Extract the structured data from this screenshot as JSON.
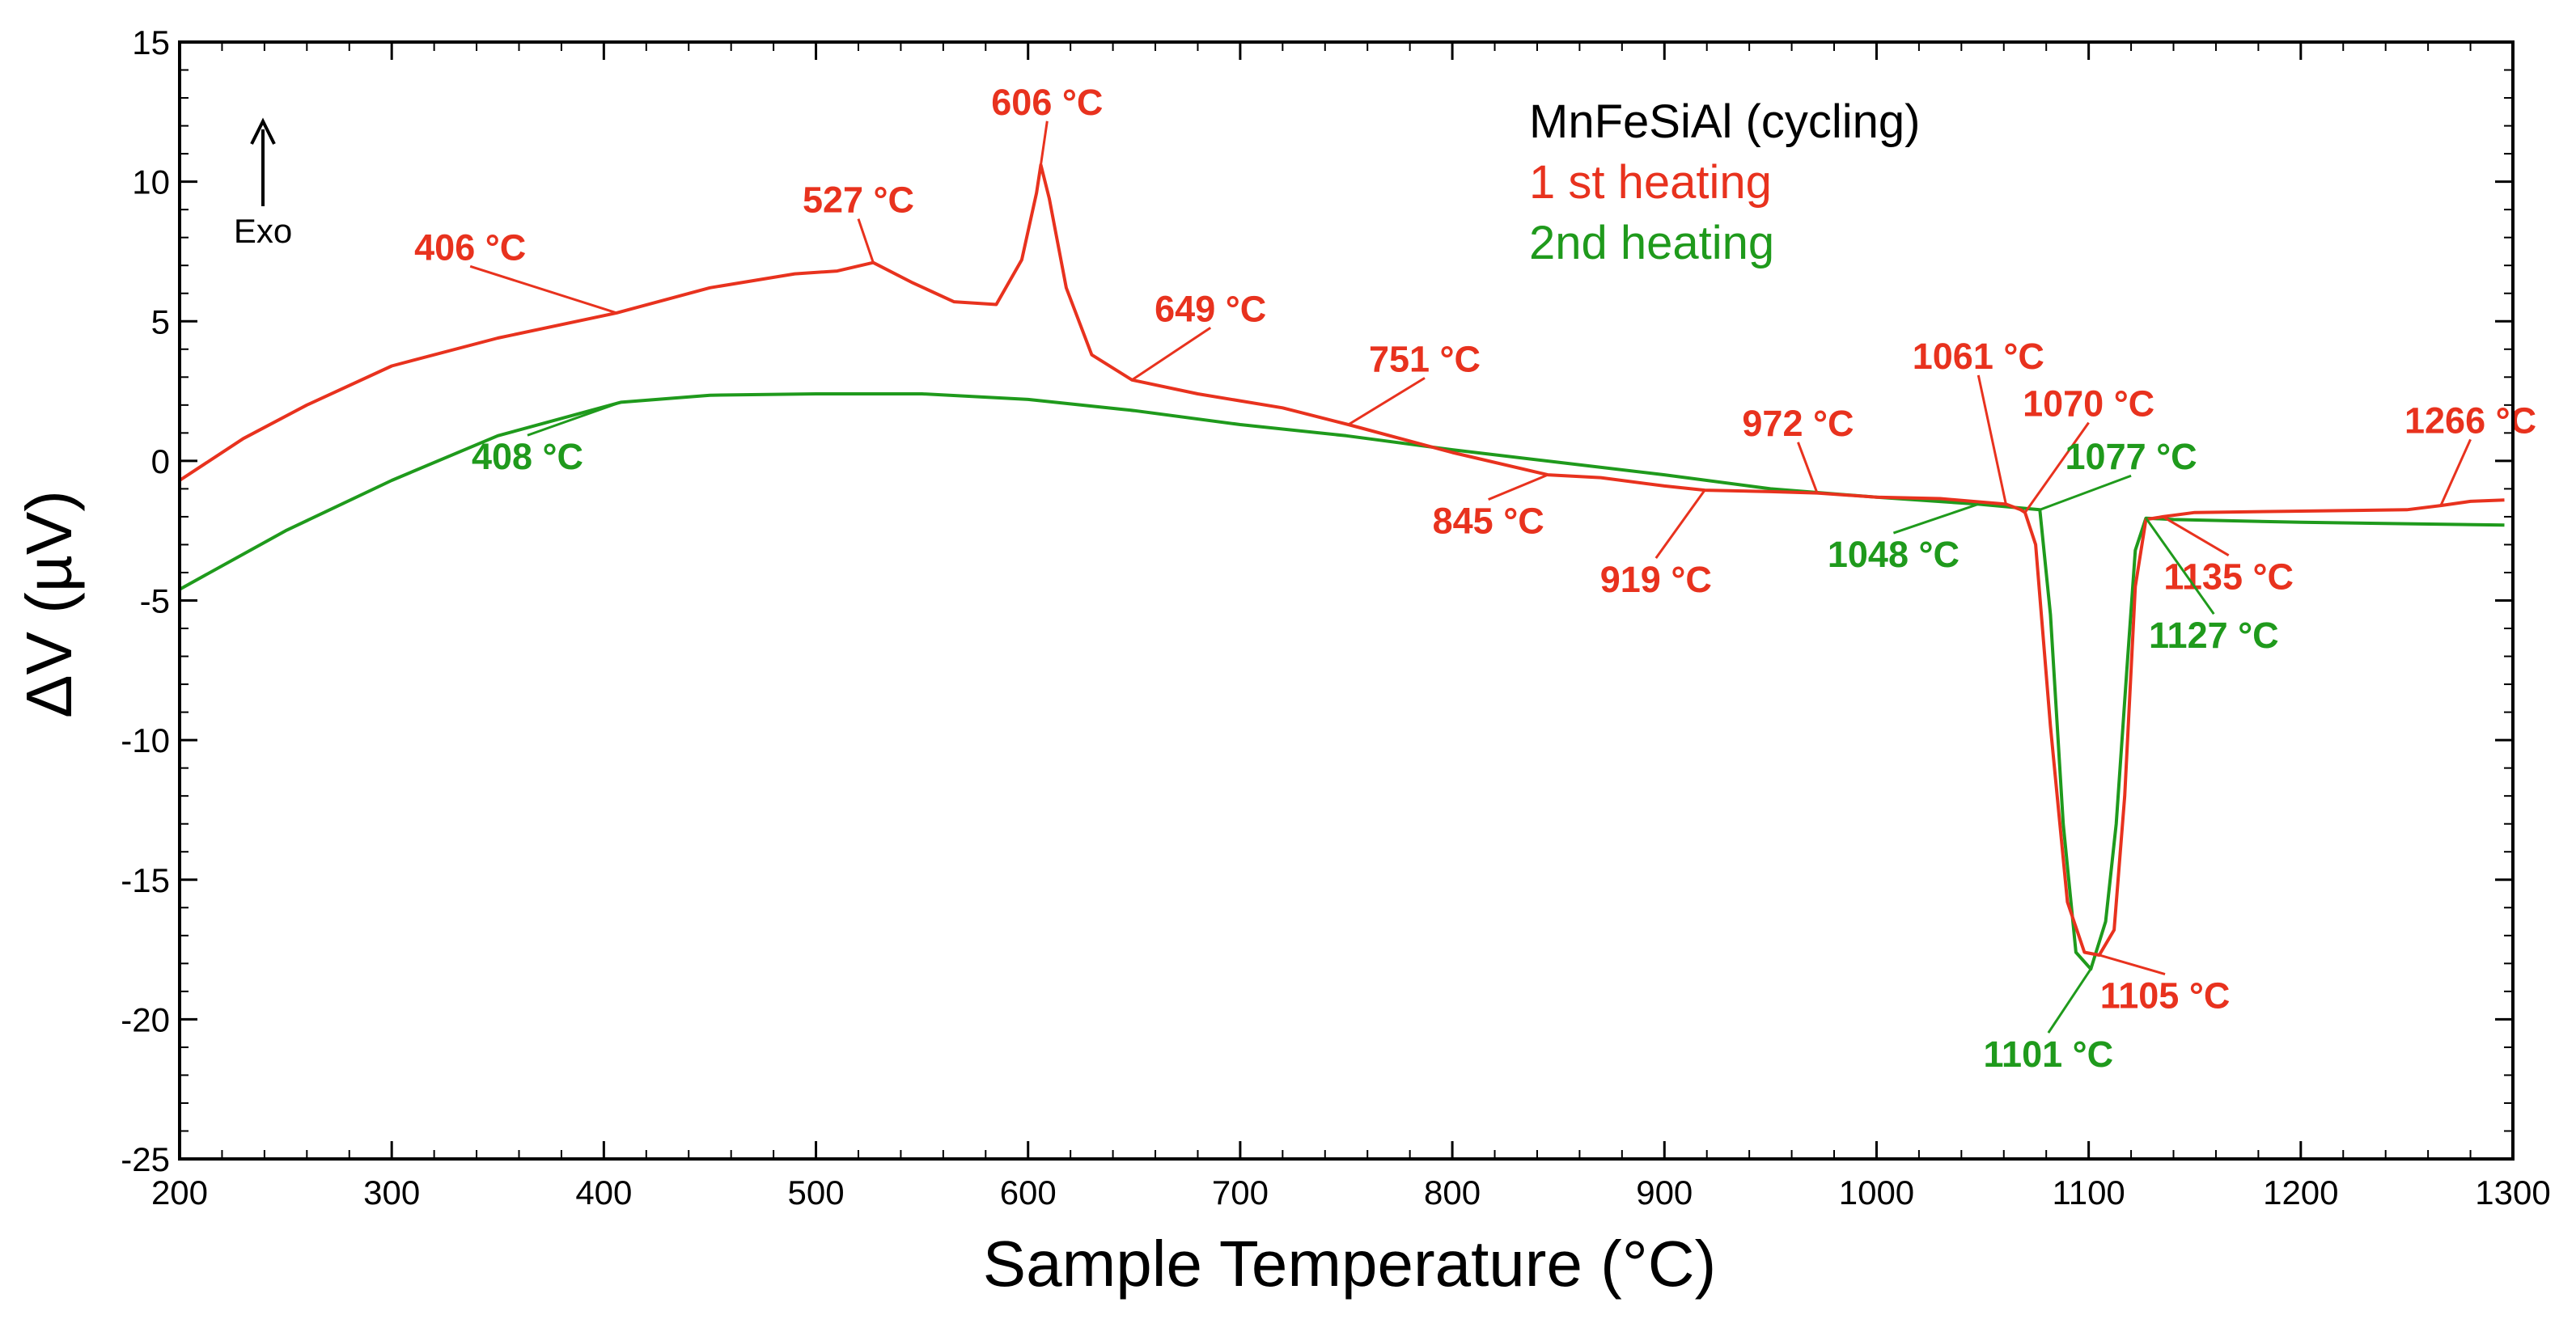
{
  "chart_data": {
    "type": "line",
    "title": "",
    "xlabel": "Sample Temperature (°C)",
    "ylabel": "ΔV (µV)",
    "xlim": [
      200,
      1300
    ],
    "ylim": [
      -25,
      15
    ],
    "xticks": [
      200,
      300,
      400,
      500,
      600,
      700,
      800,
      900,
      1000,
      1100,
      1200,
      1300
    ],
    "yticks": [
      15,
      10,
      5,
      0,
      -5,
      -10,
      -15,
      -20,
      -25
    ],
    "grid": false,
    "exo_label": "Exo",
    "legend": {
      "placement": "top-right",
      "title": "MnFeSiAl (cycling)",
      "title_color": "#000000",
      "entries": [
        {
          "label": "1 st heating",
          "color": "#e8321e"
        },
        {
          "label": "2nd heating",
          "color": "#1f9a1c"
        }
      ]
    },
    "series": [
      {
        "name": "1 st heating",
        "color": "#e8321e",
        "x": [
          200,
          230,
          260,
          300,
          350,
          406,
          450,
          490,
          510,
          527,
          545,
          565,
          585,
          597,
          604,
          606,
          610,
          618,
          630,
          649,
          680,
          720,
          751,
          800,
          845,
          870,
          900,
          919,
          950,
          972,
          1000,
          1030,
          1061,
          1068,
          1070,
          1075,
          1082,
          1090,
          1098,
          1105,
          1112,
          1117,
          1122,
          1127,
          1135,
          1150,
          1200,
          1250,
          1266,
          1280,
          1296
        ],
        "values": [
          -0.7,
          0.8,
          2.0,
          3.4,
          4.4,
          5.3,
          6.2,
          6.7,
          6.8,
          7.1,
          6.4,
          5.7,
          5.6,
          7.2,
          9.6,
          10.6,
          9.4,
          6.2,
          3.8,
          2.9,
          2.4,
          1.9,
          1.3,
          0.3,
          -0.5,
          -0.6,
          -0.9,
          -1.05,
          -1.1,
          -1.15,
          -1.3,
          -1.35,
          -1.55,
          -1.75,
          -1.85,
          -3.0,
          -9.5,
          -15.8,
          -17.6,
          -17.7,
          -16.8,
          -12.0,
          -4.5,
          -2.1,
          -2.0,
          -1.85,
          -1.8,
          -1.75,
          -1.6,
          -1.45,
          -1.4
        ]
      },
      {
        "name": "2nd heating",
        "color": "#1f9a1c",
        "x": [
          200,
          250,
          300,
          350,
          408,
          450,
          500,
          550,
          600,
          650,
          700,
          750,
          800,
          850,
          900,
          950,
          1000,
          1048,
          1070,
          1077,
          1082,
          1088,
          1094,
          1101,
          1108,
          1113,
          1118,
          1122,
          1127,
          1140,
          1200,
          1250,
          1296
        ],
        "values": [
          -4.6,
          -2.5,
          -0.7,
          0.9,
          2.1,
          2.35,
          2.4,
          2.4,
          2.2,
          1.8,
          1.3,
          0.9,
          0.4,
          -0.05,
          -0.5,
          -1.0,
          -1.3,
          -1.55,
          -1.7,
          -1.75,
          -5.5,
          -13.0,
          -17.6,
          -18.2,
          -16.5,
          -13.0,
          -7.5,
          -3.2,
          -2.05,
          -2.1,
          -2.2,
          -2.25,
          -2.3
        ]
      }
    ],
    "annotations": [
      {
        "text": "406 °C",
        "series": "1 st heating",
        "color": "#e8321e",
        "x": 406,
        "y": 5.3,
        "label_x": 337,
        "label_y": 7.2
      },
      {
        "text": "527 °C",
        "series": "1 st heating",
        "color": "#e8321e",
        "x": 527,
        "y": 7.1,
        "label_x": 520,
        "label_y": 8.9
      },
      {
        "text": "606 °C",
        "series": "1 st heating",
        "color": "#e8321e",
        "x": 606,
        "y": 10.6,
        "label_x": 609,
        "label_y": 12.4
      },
      {
        "text": "649 °C",
        "series": "1 st heating",
        "color": "#e8321e",
        "x": 649,
        "y": 2.9,
        "label_x": 686,
        "label_y": 5.0
      },
      {
        "text": "751 °C",
        "series": "1 st heating",
        "color": "#e8321e",
        "x": 751,
        "y": 1.3,
        "label_x": 787,
        "label_y": 3.2
      },
      {
        "text": "845 °C",
        "series": "1 st heating",
        "color": "#e8321e",
        "x": 845,
        "y": -0.5,
        "label_x": 817,
        "label_y": -2.6
      },
      {
        "text": "919 °C",
        "series": "1 st heating",
        "color": "#e8321e",
        "x": 919,
        "y": -1.05,
        "label_x": 896,
        "label_y": -4.7
      },
      {
        "text": "972 °C",
        "series": "1 st heating",
        "color": "#e8321e",
        "x": 972,
        "y": -1.15,
        "label_x": 963,
        "label_y": 0.9
      },
      {
        "text": "1061 °C",
        "series": "1 st heating",
        "color": "#e8321e",
        "x": 1061,
        "y": -1.55,
        "label_x": 1048,
        "label_y": 3.3
      },
      {
        "text": "1070 °C",
        "series": "1 st heating",
        "color": "#e8321e",
        "x": 1070,
        "y": -1.85,
        "label_x": 1100,
        "label_y": 1.6
      },
      {
        "text": "1135 °C",
        "series": "1 st heating",
        "color": "#e8321e",
        "x": 1135,
        "y": -2.0,
        "label_x": 1166,
        "label_y": -4.6
      },
      {
        "text": "1105 °C",
        "series": "1 st heating",
        "color": "#e8321e",
        "x": 1105,
        "y": -17.7,
        "label_x": 1136,
        "label_y": -19.6
      },
      {
        "text": "1266 °C",
        "series": "1 st heating",
        "color": "#e8321e",
        "x": 1266,
        "y": -1.6,
        "label_x": 1280,
        "label_y": 1.0
      },
      {
        "text": "408 °C",
        "series": "2nd heating",
        "color": "#1f9a1c",
        "x": 408,
        "y": 2.1,
        "label_x": 364,
        "label_y": -0.3
      },
      {
        "text": "1048 °C",
        "series": "2nd heating",
        "color": "#1f9a1c",
        "x": 1048,
        "y": -1.55,
        "label_x": 1008,
        "label_y": -3.8
      },
      {
        "text": "1077 °C",
        "series": "2nd heating",
        "color": "#1f9a1c",
        "x": 1077,
        "y": -1.75,
        "label_x": 1120,
        "label_y": -0.3
      },
      {
        "text": "1127 °C",
        "series": "2nd heating",
        "color": "#1f9a1c",
        "x": 1127,
        "y": -2.05,
        "label_x": 1159,
        "label_y": -6.7
      },
      {
        "text": "1101 °C",
        "series": "2nd heating",
        "color": "#1f9a1c",
        "x": 1101,
        "y": -18.2,
        "label_x": 1081,
        "label_y": -21.7
      }
    ]
  }
}
